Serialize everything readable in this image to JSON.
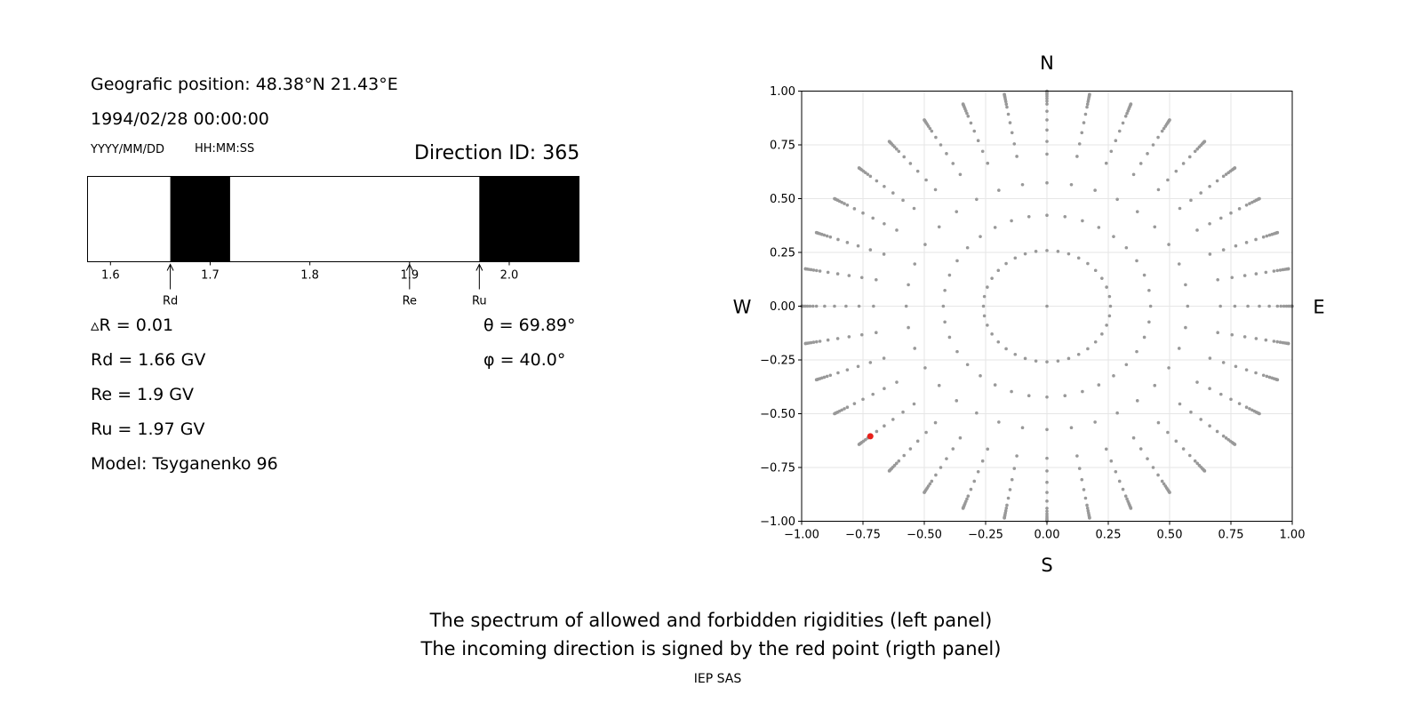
{
  "left_panel": {
    "position": "Geografic position: 48.38°N 21.43°E",
    "datetime": "1994/02/28 00:00:00",
    "date_format": "YYYY/MM/DD",
    "time_format": "HH:MM:SS",
    "direction_id": "Direction ID: 365",
    "delta_r": "▵R = 0.01",
    "rd": "Rd = 1.66 GV",
    "re": "Re = 1.9 GV",
    "ru": "Ru = 1.97 GV",
    "model": "Model: Tsyganenko 96",
    "theta": "θ = 69.89°",
    "phi": "φ = 40.0°"
  },
  "chart_data": [
    {
      "type": "bar",
      "xlim": [
        1.577,
        2.07
      ],
      "ticks": [
        1.6,
        1.7,
        1.8,
        1.9,
        2.0
      ],
      "tick_labels": [
        "1.6",
        "1.7",
        "1.8",
        "1.9",
        "2.0"
      ],
      "forbidden_bands": [
        [
          1.66,
          1.72
        ],
        [
          1.97,
          2.07
        ]
      ],
      "allowed_color": "#ffffff",
      "forbidden_color": "#000000",
      "markers": [
        {
          "label": "Rd",
          "value": 1.66
        },
        {
          "label": "Re",
          "value": 1.9
        },
        {
          "label": "Ru",
          "value": 1.97
        }
      ]
    },
    {
      "type": "scatter",
      "xlim": [
        -1.0,
        1.0
      ],
      "ylim": [
        -1.0,
        1.0
      ],
      "ticks": [
        -1.0,
        -0.75,
        -0.5,
        -0.25,
        0.0,
        0.25,
        0.5,
        0.75,
        1.0
      ],
      "tick_labels": [
        "−1.00",
        "−0.75",
        "−0.50",
        "−0.25",
        "0.00",
        "0.25",
        "0.50",
        "0.75",
        "1.00"
      ],
      "grid": true,
      "compass": {
        "north": "N",
        "south": "S",
        "west": "W",
        "east": "E"
      },
      "grid_point_color": "#999999",
      "rays_azimuth_deg": [
        0,
        10,
        20,
        30,
        40,
        50,
        60,
        70,
        80,
        90,
        100,
        110,
        120,
        130,
        140,
        150,
        160,
        170,
        180,
        190,
        200,
        210,
        220,
        230,
        240,
        250,
        260,
        270,
        280,
        290,
        300,
        310,
        320,
        330,
        340,
        350
      ],
      "zenith_rings_deg": [
        15,
        25,
        35,
        45,
        50,
        55,
        60,
        65,
        70,
        72.5,
        75,
        77.5,
        80,
        82.5,
        85,
        87.5,
        90
      ],
      "highlight_point": {
        "x": -0.72,
        "y": -0.605,
        "color": "#e8201a"
      }
    }
  ],
  "caption": {
    "line1": "The spectrum of allowed and forbidden rigidities (left panel)",
    "line2": "The incoming direction is signed by the red point (rigth panel)"
  },
  "footer": "IEP SAS"
}
